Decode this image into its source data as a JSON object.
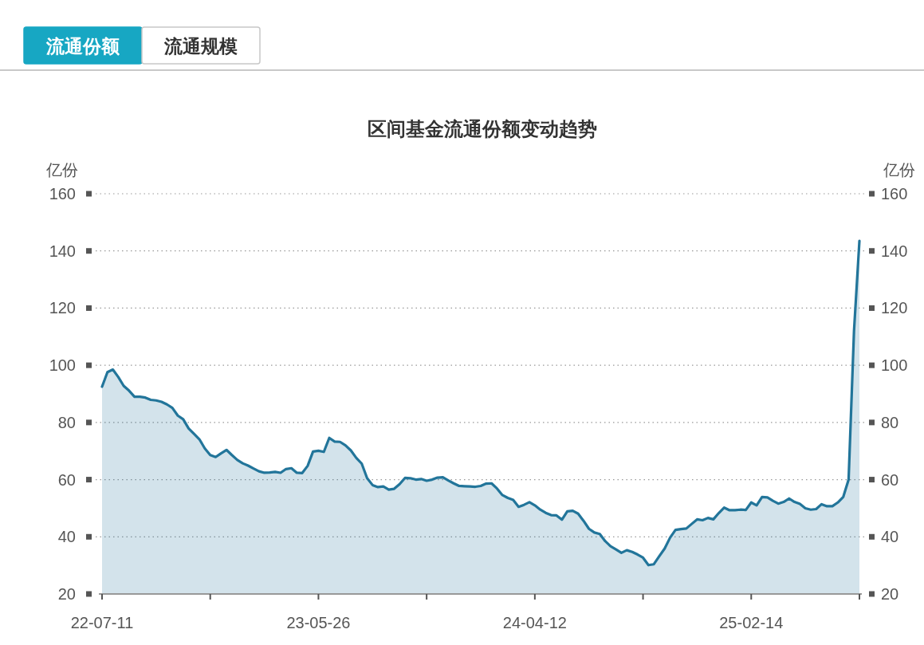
{
  "chart_data": {
    "type": "area",
    "title": "区间基金流通份额变动趋势",
    "ylabel": "亿份",
    "y2label": "亿份",
    "annotations": [
      "流通份额",
      "流通规模"
    ],
    "categories": [
      "22-07-11",
      null,
      null,
      null,
      null,
      null,
      null,
      null,
      null,
      null,
      null,
      null,
      null,
      null,
      null,
      null,
      null,
      null,
      null,
      null,
      null,
      null,
      null,
      null,
      null,
      null,
      null,
      null,
      null,
      null,
      null,
      null,
      null,
      null,
      null,
      null,
      null,
      null,
      null,
      null,
      "23-05-26",
      null,
      null,
      null,
      null,
      null,
      null,
      null,
      null,
      null,
      null,
      null,
      null,
      null,
      null,
      null,
      null,
      null,
      null,
      null,
      null,
      null,
      null,
      null,
      null,
      null,
      null,
      null,
      null,
      null,
      null,
      null,
      null,
      null,
      null,
      null,
      null,
      null,
      null,
      null,
      "24-04-12",
      null,
      null,
      null,
      null,
      null,
      null,
      null,
      null,
      null,
      null,
      null,
      null,
      null,
      null,
      null,
      null,
      null,
      null,
      null,
      null,
      null,
      null,
      null,
      null,
      null,
      null,
      null,
      null,
      null,
      null,
      null,
      null,
      null,
      null,
      null,
      null,
      null,
      null,
      null,
      "25-02-14",
      null,
      null,
      null,
      null,
      null,
      null,
      null,
      null,
      null,
      null,
      null,
      null,
      null,
      null,
      null,
      null,
      null,
      null,
      null,
      null
    ],
    "series": [
      {
        "color": "#22759a",
        "values": [
          92.5,
          97.6,
          98.5,
          95.9,
          92.8,
          91.1,
          89.0,
          89.0,
          88.7,
          87.9,
          87.7,
          87.2,
          86.3,
          85.1,
          82.4,
          81.1,
          77.9,
          76.0,
          74.1,
          70.9,
          68.6,
          67.9,
          69.2,
          70.4,
          68.6,
          66.9,
          65.7,
          64.9,
          63.9,
          62.9,
          62.4,
          62.5,
          62.7,
          62.4,
          63.7,
          64.0,
          62.4,
          62.3,
          64.8,
          69.8,
          70.1,
          69.7,
          74.6,
          73.3,
          73.2,
          72.0,
          70.2,
          67.6,
          65.6,
          60.5,
          58.1,
          57.4,
          57.6,
          56.5,
          56.8,
          58.4,
          60.6,
          60.5,
          60.0,
          60.2,
          59.6,
          60.0,
          60.7,
          60.8,
          59.7,
          58.7,
          57.8,
          57.7,
          57.6,
          57.5,
          57.8,
          58.6,
          58.7,
          56.9,
          54.6,
          53.6,
          52.9,
          50.5,
          51.2,
          52.1,
          51.0,
          49.5,
          48.4,
          47.6,
          47.5,
          46.0,
          48.9,
          49.1,
          48.1,
          45.6,
          42.8,
          41.5,
          41.0,
          38.5,
          36.7,
          35.6,
          34.4,
          35.3,
          34.7,
          33.8,
          32.7,
          30.1,
          30.4,
          33.2,
          35.9,
          39.7,
          42.4,
          42.7,
          42.9,
          44.5,
          46.1,
          45.8,
          46.6,
          46.1,
          48.3,
          50.2,
          49.3,
          49.3,
          49.5,
          49.4,
          52.0,
          51.0,
          53.9,
          53.8,
          52.6,
          51.6,
          52.2,
          53.4,
          52.2,
          51.5,
          50.0,
          49.5,
          49.7,
          51.4,
          50.7,
          50.7,
          52.0,
          53.9,
          60.0,
          112,
          143.5
        ]
      }
    ],
    "ylim": [
      20,
      160
    ],
    "yticks": [
      20,
      40,
      60,
      80,
      100,
      120,
      140,
      160
    ],
    "y2lim": [
      20,
      160
    ],
    "y2ticks": [
      20,
      40,
      60,
      80,
      100,
      120,
      140,
      160
    ],
    "grid": "y"
  }
}
